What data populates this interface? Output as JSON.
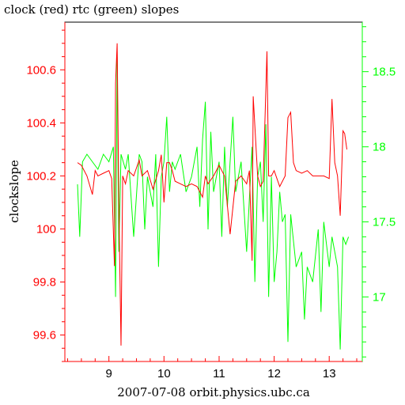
{
  "chart_data": {
    "type": "line",
    "title": "clock (red) rtc (green) slopes",
    "xlabel": "2007-07-08 orbit.physics.ubc.ca",
    "ylabel": "clockslope",
    "xlim": [
      8.2,
      13.6
    ],
    "x_ticks": [
      {
        "value": 9,
        "label": "9"
      },
      {
        "value": 10,
        "label": "10"
      },
      {
        "value": 11,
        "label": "11"
      },
      {
        "value": 12,
        "label": "12"
      },
      {
        "value": 13,
        "label": "13"
      }
    ],
    "left_axis": {
      "ylim": [
        99.5,
        100.78
      ],
      "color": "#ff0000",
      "ticks": [
        {
          "value": 99.6,
          "label": "99.6"
        },
        {
          "value": 99.8,
          "label": "99.8"
        },
        {
          "value": 100,
          "label": "100"
        },
        {
          "value": 100.2,
          "label": "100.2"
        },
        {
          "value": 100.4,
          "label": "100.4"
        },
        {
          "value": 100.6,
          "label": "100.6"
        }
      ]
    },
    "right_axis": {
      "ylim": [
        16.57,
        18.83
      ],
      "color": "#00ff00",
      "ticks": [
        {
          "value": 17,
          "label": "17"
        },
        {
          "value": 17.5,
          "label": "17.5"
        },
        {
          "value": 18,
          "label": "18"
        },
        {
          "value": 18.5,
          "label": "18.5"
        }
      ]
    },
    "grid": false,
    "series": [
      {
        "axis": "left",
        "color": "#ff0000",
        "x": [
          8.43,
          8.5,
          8.6,
          8.7,
          8.75,
          8.8,
          8.9,
          9.0,
          9.05,
          9.1,
          9.12,
          9.15,
          9.18,
          9.22,
          9.25,
          9.3,
          9.35,
          9.45,
          9.55,
          9.6,
          9.7,
          9.8,
          9.9,
          9.95,
          10.0,
          10.05,
          10.1,
          10.15,
          10.2,
          10.3,
          10.4,
          10.5,
          10.6,
          10.7,
          10.75,
          10.8,
          10.9,
          11.0,
          11.05,
          11.1,
          11.2,
          11.3,
          11.4,
          11.5,
          11.55,
          11.6,
          11.62,
          11.7,
          11.75,
          11.8,
          11.87,
          11.9,
          11.95,
          12.0,
          12.1,
          12.2,
          12.25,
          12.3,
          12.35,
          12.4,
          12.5,
          12.6,
          12.7,
          12.8,
          12.9,
          13.0,
          13.05,
          13.1,
          13.15,
          13.2,
          13.25,
          13.28,
          13.32
        ],
        "y": [
          100.25,
          100.24,
          100.2,
          100.13,
          100.22,
          100.2,
          100.21,
          100.22,
          100.19,
          99.86,
          100.55,
          100.7,
          100.1,
          99.56,
          100.2,
          100.17,
          100.22,
          100.2,
          100.26,
          100.2,
          100.22,
          100.15,
          100.22,
          100.28,
          100.1,
          100.25,
          100.25,
          100.22,
          100.18,
          100.17,
          100.16,
          100.17,
          100.16,
          100.12,
          100.2,
          100.17,
          100.2,
          100.24,
          100.22,
          100.2,
          99.98,
          100.18,
          100.2,
          100.17,
          100.22,
          99.88,
          100.5,
          100.2,
          100.16,
          100.18,
          100.67,
          100.2,
          100.2,
          100.22,
          100.16,
          100.2,
          100.42,
          100.44,
          100.25,
          100.22,
          100.21,
          100.22,
          100.2,
          100.2,
          100.2,
          100.19,
          100.49,
          100.25,
          100.2,
          100.05,
          100.37,
          100.36,
          100.3
        ]
      },
      {
        "axis": "right",
        "color": "#00ff00",
        "x": [
          8.43,
          8.47,
          8.52,
          8.6,
          8.7,
          8.8,
          8.9,
          9.0,
          9.08,
          9.12,
          9.15,
          9.18,
          9.22,
          9.3,
          9.35,
          9.45,
          9.55,
          9.6,
          9.65,
          9.7,
          9.8,
          9.85,
          9.9,
          9.95,
          10.0,
          10.05,
          10.1,
          10.15,
          10.2,
          10.3,
          10.4,
          10.5,
          10.6,
          10.65,
          10.7,
          10.75,
          10.8,
          10.85,
          10.9,
          11.0,
          11.05,
          11.1,
          11.15,
          11.2,
          11.25,
          11.3,
          11.4,
          11.5,
          11.6,
          11.65,
          11.7,
          11.75,
          11.8,
          11.85,
          11.9,
          11.95,
          12.0,
          12.05,
          12.1,
          12.15,
          12.2,
          12.25,
          12.3,
          12.4,
          12.5,
          12.55,
          12.6,
          12.7,
          12.8,
          12.85,
          12.9,
          13.0,
          13.05,
          13.1,
          13.15,
          13.2,
          13.25,
          13.3,
          13.35
        ],
        "y": [
          17.75,
          17.4,
          17.9,
          17.95,
          17.9,
          17.85,
          17.95,
          17.9,
          18.0,
          17.0,
          18.6,
          17.3,
          17.95,
          17.85,
          17.95,
          17.4,
          17.95,
          17.9,
          17.45,
          17.8,
          17.6,
          17.95,
          17.2,
          17.8,
          17.9,
          18.2,
          17.7,
          17.9,
          17.85,
          17.95,
          17.7,
          17.8,
          18.0,
          17.6,
          18.05,
          18.3,
          17.45,
          18.1,
          17.7,
          17.9,
          17.4,
          18.0,
          17.6,
          17.9,
          18.2,
          17.7,
          17.9,
          17.3,
          18.0,
          17.1,
          17.8,
          17.9,
          17.5,
          18.15,
          17.0,
          17.8,
          17.1,
          17.3,
          17.7,
          17.5,
          17.55,
          16.7,
          17.55,
          17.2,
          17.3,
          16.85,
          17.2,
          17.1,
          17.45,
          16.9,
          17.5,
          17.2,
          17.4,
          17.3,
          17.2,
          16.65,
          17.4,
          17.35,
          17.4
        ]
      }
    ]
  }
}
